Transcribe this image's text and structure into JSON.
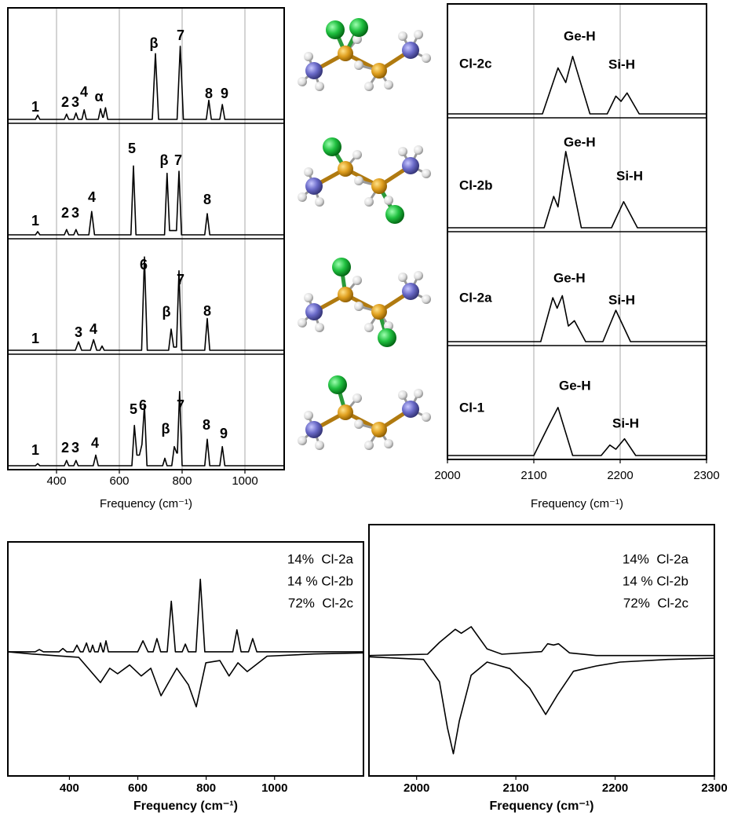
{
  "chart_data": [
    {
      "type": "line",
      "x_label": "Frequency (cm⁻¹)",
      "xlim": [
        245,
        1125
      ],
      "xticks": [
        400,
        600,
        800,
        1000
      ],
      "ylim": [
        0,
        1
      ],
      "grid": true,
      "color": "#000000",
      "series": [
        {
          "color": "#000000",
          "peak_labels": [
            "1",
            "2",
            "3",
            "4",
            "α",
            "β",
            "7",
            "8",
            "9"
          ],
          "x": [
            245,
            333,
            340,
            347,
            425,
            432,
            439,
            455,
            462,
            469,
            481,
            488,
            495,
            533,
            540,
            547,
            549,
            556,
            563,
            705,
            715,
            725,
            784,
            794,
            804,
            877,
            885,
            893,
            920,
            928,
            936,
            1125
          ],
          "values": [
            0,
            0,
            0.04,
            0,
            0,
            0.05,
            0,
            0,
            0.06,
            0,
            0,
            0.09,
            0,
            0,
            0.1,
            0.02,
            0.02,
            0.11,
            0,
            0,
            0.62,
            0,
            0,
            0.69,
            0,
            0,
            0.18,
            0,
            0,
            0.14,
            0,
            0
          ]
        },
        {
          "color": "#000000",
          "peak_labels": [
            "1",
            "2",
            "3",
            "4",
            "5",
            "β",
            "7",
            "8"
          ],
          "x": [
            245,
            333,
            340,
            347,
            425,
            432,
            439,
            455,
            462,
            469,
            503,
            512,
            521,
            637,
            645,
            653,
            744,
            752,
            760,
            782,
            790,
            798,
            872,
            880,
            888,
            1125
          ],
          "values": [
            0,
            0,
            0.03,
            0,
            0,
            0.05,
            0,
            0,
            0.05,
            0,
            0,
            0.22,
            0,
            0,
            0.65,
            0,
            0,
            0.58,
            0.04,
            0.04,
            0.6,
            0,
            0,
            0.2,
            0,
            0
          ]
        },
        {
          "color": "#000000",
          "peak_labels": [
            "1",
            "3",
            "4",
            "6",
            "β",
            "7",
            "8"
          ],
          "x": [
            245,
            460,
            470,
            480,
            508,
            518,
            528,
            538,
            545,
            552,
            671,
            680,
            689,
            757,
            765,
            773,
            782,
            790,
            798,
            872,
            880,
            888,
            1125
          ],
          "values": [
            0,
            0,
            0.08,
            0,
            0,
            0.1,
            0,
            0,
            0.04,
            0,
            0,
            0.88,
            0,
            0,
            0.2,
            0.03,
            0.03,
            0.75,
            0,
            0,
            0.3,
            0,
            0
          ]
        },
        {
          "color": "#000000",
          "peak_labels": [
            "1",
            "2",
            "3",
            "4",
            "5",
            "6",
            "β",
            "7",
            "8",
            "9"
          ],
          "x": [
            245,
            333,
            340,
            347,
            425,
            432,
            439,
            455,
            462,
            469,
            517,
            525,
            533,
            640,
            648,
            656,
            664,
            672,
            680,
            688,
            738,
            745,
            752,
            767,
            775,
            783,
            785,
            792,
            800,
            872,
            880,
            888,
            920,
            928,
            936,
            1125
          ],
          "values": [
            0,
            0,
            0.02,
            0,
            0,
            0.05,
            0,
            0,
            0.05,
            0,
            0,
            0.1,
            0,
            0,
            0.38,
            0.1,
            0.1,
            0.2,
            0.57,
            0,
            0,
            0.07,
            0,
            0,
            0.18,
            0.12,
            0.12,
            0.7,
            0,
            0,
            0.25,
            0,
            0,
            0.18,
            0,
            0
          ]
        }
      ]
    },
    {
      "type": "line",
      "x_label": "Frequency (cm⁻¹)",
      "xlim": [
        2000,
        2300
      ],
      "xticks": [
        2000,
        2100,
        2200,
        2300
      ],
      "ylim": [
        0,
        1
      ],
      "grid": true,
      "color": "#000000",
      "series": [
        {
          "name": "Cl-2c",
          "color": "#000000",
          "annotations": [
            "Ge-H",
            "Si-H"
          ],
          "x": [
            2000,
            2110,
            2128,
            2137,
            2145,
            2165,
            2185,
            2195,
            2201,
            2208,
            2222,
            2300
          ],
          "values": [
            0,
            0,
            0.44,
            0.3,
            0.55,
            0,
            0,
            0.17,
            0.12,
            0.2,
            0,
            0
          ]
        },
        {
          "name": "Cl-2b",
          "color": "#000000",
          "annotations": [
            "Ge-H",
            "Si-H"
          ],
          "x": [
            2000,
            2112,
            2123,
            2128,
            2137,
            2155,
            2190,
            2204,
            2220,
            2300
          ],
          "values": [
            0,
            0,
            0.3,
            0.2,
            0.73,
            0,
            0,
            0.25,
            0,
            0
          ]
        },
        {
          "name": "Cl-2a",
          "color": "#000000",
          "annotations": [
            "Ge-H",
            "Si-H"
          ],
          "x": [
            2000,
            2108,
            2122,
            2127,
            2133,
            2140,
            2147,
            2160,
            2180,
            2195,
            2212,
            2300
          ],
          "values": [
            0,
            0,
            0.42,
            0.32,
            0.44,
            0.15,
            0.2,
            0,
            0,
            0.3,
            0,
            0
          ]
        },
        {
          "name": "Cl-1",
          "color": "#000000",
          "annotations": [
            "Ge-H",
            "Si-H"
          ],
          "x": [
            2000,
            2100,
            2112,
            2118,
            2128,
            2145,
            2178,
            2188,
            2195,
            2205,
            2218,
            2300
          ],
          "values": [
            0,
            0,
            0.2,
            0.3,
            0.46,
            0,
            0,
            0.1,
            0.06,
            0.16,
            0,
            0
          ]
        }
      ]
    },
    {
      "type": "line",
      "x_label": "Frequency (cm⁻¹)",
      "xlim": [
        220,
        1260
      ],
      "xticks": [
        400,
        600,
        800,
        1000
      ],
      "ylim": [
        -1.13,
        1
      ],
      "grid": false,
      "color": "#000000",
      "legend_text": [
        "14%  Cl-2a",
        "14 % Cl-2b",
        "72%  Cl-2c"
      ],
      "series": [
        {
          "color": "#000000",
          "x": [
            220,
            300,
            312,
            324,
            370,
            381,
            392,
            412,
            422,
            432,
            440,
            450,
            458,
            462,
            468,
            474,
            484,
            491,
            498,
            500,
            507,
            514,
            600,
            615,
            630,
            645,
            656,
            667,
            686,
            698,
            710,
            730,
            739,
            748,
            770,
            783,
            796,
            878,
            890,
            902,
            924,
            936,
            948,
            1260
          ],
          "values": [
            0,
            0,
            0.02,
            0,
            0,
            0.03,
            0,
            0,
            0.06,
            0,
            0,
            0.08,
            0,
            0,
            0.06,
            0,
            0,
            0.08,
            0,
            0,
            0.1,
            0,
            0,
            0.1,
            0,
            0,
            0.12,
            0,
            0,
            0.46,
            0,
            0,
            0.07,
            0,
            0,
            0.66,
            0,
            0,
            0.2,
            0,
            0,
            0.12,
            0,
            0
          ]
        },
        {
          "color": "#000000",
          "x": [
            220,
            289,
            427,
            491,
            518,
            541,
            576,
            610,
            638,
            668,
            714,
            748,
            771,
            799,
            840,
            867,
            893,
            920,
            978,
            1115,
            1260
          ],
          "values": [
            0,
            -0.02,
            -0.05,
            -0.28,
            -0.15,
            -0.2,
            -0.12,
            -0.22,
            -0.15,
            -0.4,
            -0.15,
            -0.3,
            -0.5,
            -0.1,
            -0.08,
            -0.22,
            -0.1,
            -0.18,
            -0.04,
            -0.02,
            -0.01
          ]
        }
      ]
    },
    {
      "type": "line",
      "x_label": "Frequency (cm⁻¹)",
      "xlim": [
        1952,
        2300
      ],
      "xticks": [
        2000,
        2100,
        2200,
        2300
      ],
      "ylim": [
        -0.92,
        1
      ],
      "grid": false,
      "color": "#000000",
      "legend_text": [
        "14%  Cl-2a",
        "14 % Cl-2b",
        "72%  Cl-2c"
      ],
      "series": [
        {
          "color": "#000000",
          "x": [
            1952,
            2011,
            2023,
            2039,
            2045,
            2055,
            2071,
            2086,
            2126,
            2132,
            2138,
            2143,
            2154,
            2181,
            2300
          ],
          "values": [
            0,
            0.01,
            0.1,
            0.2,
            0.17,
            0.22,
            0.05,
            0.01,
            0.03,
            0.09,
            0.08,
            0.09,
            0.02,
            0,
            0
          ]
        },
        {
          "color": "#000000",
          "x": [
            1952,
            2007,
            2023,
            2031,
            2037,
            2043,
            2055,
            2071,
            2094,
            2114,
            2130,
            2142,
            2158,
            2181,
            2205,
            2253,
            2300
          ],
          "values": [
            -0.01,
            -0.03,
            -0.2,
            -0.55,
            -0.75,
            -0.5,
            -0.15,
            -0.05,
            -0.1,
            -0.25,
            -0.45,
            -0.3,
            -0.12,
            -0.08,
            -0.05,
            -0.03,
            -0.02
          ]
        }
      ]
    }
  ]
}
